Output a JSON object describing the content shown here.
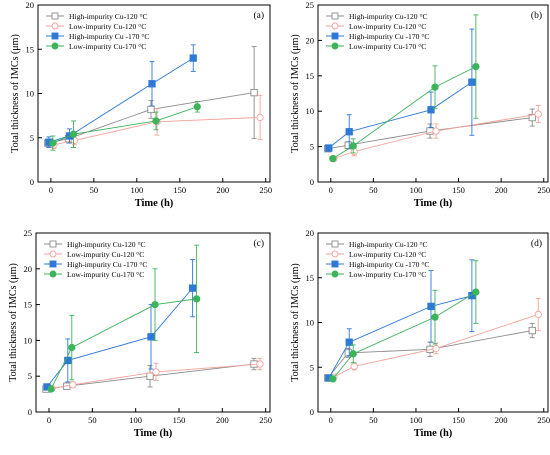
{
  "colors": {
    "hi120": "#8c8c8c",
    "lo120": "#f4a29a",
    "hi170": "#2e78d6",
    "lo170": "#3db35a"
  },
  "chart_data": [
    {
      "type": "scatter",
      "panel_label": "(a)",
      "xlabel": "Time (h)",
      "ylabel": "Total thickness of IMCs (μm)",
      "xlim": [
        -15,
        255
      ],
      "ylim": [
        0,
        20
      ],
      "xticks": [
        0,
        50,
        100,
        150,
        200,
        250
      ],
      "yticks": [
        0,
        5,
        10,
        15,
        20
      ],
      "legend_position": "top-left",
      "series": [
        {
          "name": "High-impurity Cu-120 °C",
          "key": "hi120",
          "marker": "square-open",
          "x": [
            0,
            24,
            120,
            240
          ],
          "y": [
            4.4,
            4.9,
            8.2,
            10.1
          ],
          "err": [
            0.4,
            0.5,
            1.0,
            5.2
          ]
        },
        {
          "name": "Low-impurity Cu-120 °C",
          "key": "lo120",
          "marker": "circle-open",
          "x": [
            0,
            24,
            120,
            240
          ],
          "y": [
            4.2,
            4.7,
            6.8,
            7.3
          ],
          "err": [
            0.4,
            0.5,
            1.5,
            2.5
          ]
        },
        {
          "name": "High-impurity Cu -170 °C",
          "key": "hi170",
          "marker": "square-filled",
          "x": [
            0,
            24,
            120,
            168
          ],
          "y": [
            4.5,
            5.2,
            11.1,
            14.0
          ],
          "err": [
            0.6,
            0.8,
            2.5,
            1.5
          ]
        },
        {
          "name": "Low-impurity Cu-170 °C",
          "key": "lo170",
          "marker": "circle-filled",
          "x": [
            0,
            24,
            120,
            168
          ],
          "y": [
            4.4,
            5.4,
            6.9,
            8.5
          ],
          "err": [
            0.8,
            1.5,
            1.0,
            0.6
          ]
        }
      ]
    },
    {
      "type": "scatter",
      "panel_label": "(b)",
      "xlabel": "Time (h)",
      "ylabel": "Total thickness of IMCs (μm)",
      "xlim": [
        -15,
        255
      ],
      "ylim": [
        0,
        25
      ],
      "xticks": [
        0,
        50,
        100,
        150,
        200,
        250
      ],
      "yticks": [
        0,
        5,
        10,
        15,
        20,
        25
      ],
      "legend_position": "top-left",
      "series": [
        {
          "name": "High-impurity Cu-120 °C",
          "key": "hi120",
          "marker": "square-open",
          "x": [
            0,
            24,
            120,
            240
          ],
          "y": [
            4.7,
            5.2,
            7.2,
            9.1
          ],
          "err": [
            0.3,
            0.5,
            1.0,
            1.2
          ]
        },
        {
          "name": "Low-impurity Cu-120 °C",
          "key": "lo120",
          "marker": "circle-open",
          "x": [
            0,
            24,
            120,
            240
          ],
          "y": [
            3.3,
            4.3,
            7.2,
            9.6
          ],
          "err": [
            0.3,
            0.6,
            1.0,
            1.2
          ]
        },
        {
          "name": "High-impurity Cu -170 °C",
          "key": "hi170",
          "marker": "square-filled",
          "x": [
            0,
            24,
            120,
            168
          ],
          "y": [
            4.8,
            7.1,
            10.2,
            14.1
          ],
          "err": [
            0.4,
            2.4,
            2.5,
            7.5
          ]
        },
        {
          "name": "Low-impurity Cu-170 °C",
          "key": "lo170",
          "marker": "circle-filled",
          "x": [
            0,
            24,
            120,
            168
          ],
          "y": [
            3.3,
            5.1,
            13.4,
            16.3
          ],
          "err": [
            0.3,
            1.0,
            3.0,
            7.3
          ]
        }
      ]
    },
    {
      "type": "scatter",
      "panel_label": "(c)",
      "xlabel": "Time (h)",
      "ylabel": "Total thickness of IMCs (μm)",
      "xlim": [
        -15,
        255
      ],
      "ylim": [
        0,
        25
      ],
      "xticks": [
        0,
        50,
        100,
        150,
        200,
        250
      ],
      "yticks": [
        0,
        5,
        10,
        15,
        20,
        25
      ],
      "legend_position": "top-left",
      "series": [
        {
          "name": "High-impurity Cu-120 °C",
          "key": "hi120",
          "marker": "square-open",
          "x": [
            0,
            24,
            120,
            240
          ],
          "y": [
            3.2,
            3.6,
            5.0,
            6.7
          ],
          "err": [
            0.3,
            0.4,
            1.5,
            0.8
          ]
        },
        {
          "name": "Low-impurity Cu-120 °C",
          "key": "lo120",
          "marker": "circle-open",
          "x": [
            0,
            24,
            120,
            240
          ],
          "y": [
            3.3,
            3.8,
            5.6,
            6.7
          ],
          "err": [
            0.3,
            0.4,
            1.2,
            0.8
          ]
        },
        {
          "name": "High-impurity Cu -170 °C",
          "key": "hi170",
          "marker": "square-filled",
          "x": [
            0,
            24,
            120,
            168
          ],
          "y": [
            3.5,
            7.2,
            10.5,
            17.3
          ],
          "err": [
            0.4,
            3.0,
            4.5,
            4.0
          ]
        },
        {
          "name": "Low-impurity Cu-170 °C",
          "key": "lo170",
          "marker": "circle-filled",
          "x": [
            0,
            24,
            120,
            168
          ],
          "y": [
            3.2,
            9.0,
            15.0,
            15.8
          ],
          "err": [
            0.3,
            4.5,
            5.0,
            7.5
          ]
        }
      ]
    },
    {
      "type": "scatter",
      "panel_label": "(d)",
      "xlabel": "Time (h)",
      "ylabel": "Total thickness of IMCs (μm)",
      "xlim": [
        -15,
        255
      ],
      "ylim": [
        0,
        20
      ],
      "xticks": [
        0,
        50,
        100,
        150,
        200,
        250
      ],
      "yticks": [
        0,
        5,
        10,
        15,
        20
      ],
      "legend_position": "top-left",
      "series": [
        {
          "name": "High-impurity Cu-120 °C",
          "key": "hi120",
          "marker": "square-open",
          "x": [
            0,
            24,
            120,
            240
          ],
          "y": [
            3.8,
            6.6,
            7.0,
            9.1
          ],
          "err": [
            0.3,
            0.5,
            0.8,
            0.8
          ]
        },
        {
          "name": "Low-impurity Cu-120 °C",
          "key": "lo120",
          "marker": "circle-open",
          "x": [
            0,
            24,
            120,
            240
          ],
          "y": [
            3.9,
            5.1,
            7.1,
            10.9
          ],
          "err": [
            0.3,
            0.4,
            0.6,
            1.8
          ]
        },
        {
          "name": "High-impurity Cu -170 °C",
          "key": "hi170",
          "marker": "square-filled",
          "x": [
            0,
            24,
            120,
            168
          ],
          "y": [
            3.8,
            7.8,
            11.8,
            13.0
          ],
          "err": [
            0.3,
            1.5,
            4.0,
            4.0
          ]
        },
        {
          "name": "Low-impurity Cu-170 °C",
          "key": "lo170",
          "marker": "circle-filled",
          "x": [
            0,
            24,
            120,
            168
          ],
          "y": [
            3.7,
            6.5,
            10.6,
            13.4
          ],
          "err": [
            0.3,
            1.0,
            3.0,
            3.5
          ]
        }
      ]
    }
  ]
}
